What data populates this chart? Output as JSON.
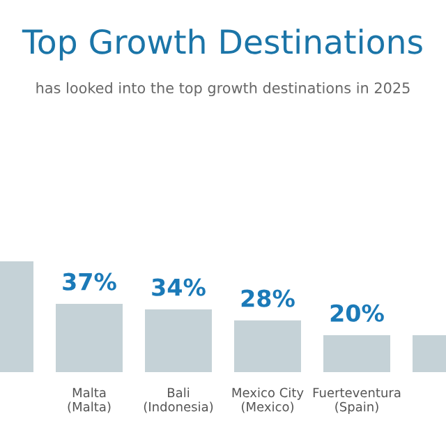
{
  "chart_data": {
    "type": "bar",
    "title": "Top Growth Destinations",
    "subtitle": "has looked into the top growth destinations in 2025",
    "categories": [
      null,
      "Malta\n(Malta)",
      "Bali\n(Indonesia)",
      "Mexico City\n(Mexico)",
      "Fuerteventura\n(Spain)",
      null
    ],
    "values": [
      60,
      37,
      34,
      28,
      20,
      20
    ],
    "value_labels": [
      null,
      "37%",
      "34%",
      "28%",
      "20%",
      null
    ],
    "color": "#c5d2d7",
    "grid": false,
    "legend": false
  }
}
